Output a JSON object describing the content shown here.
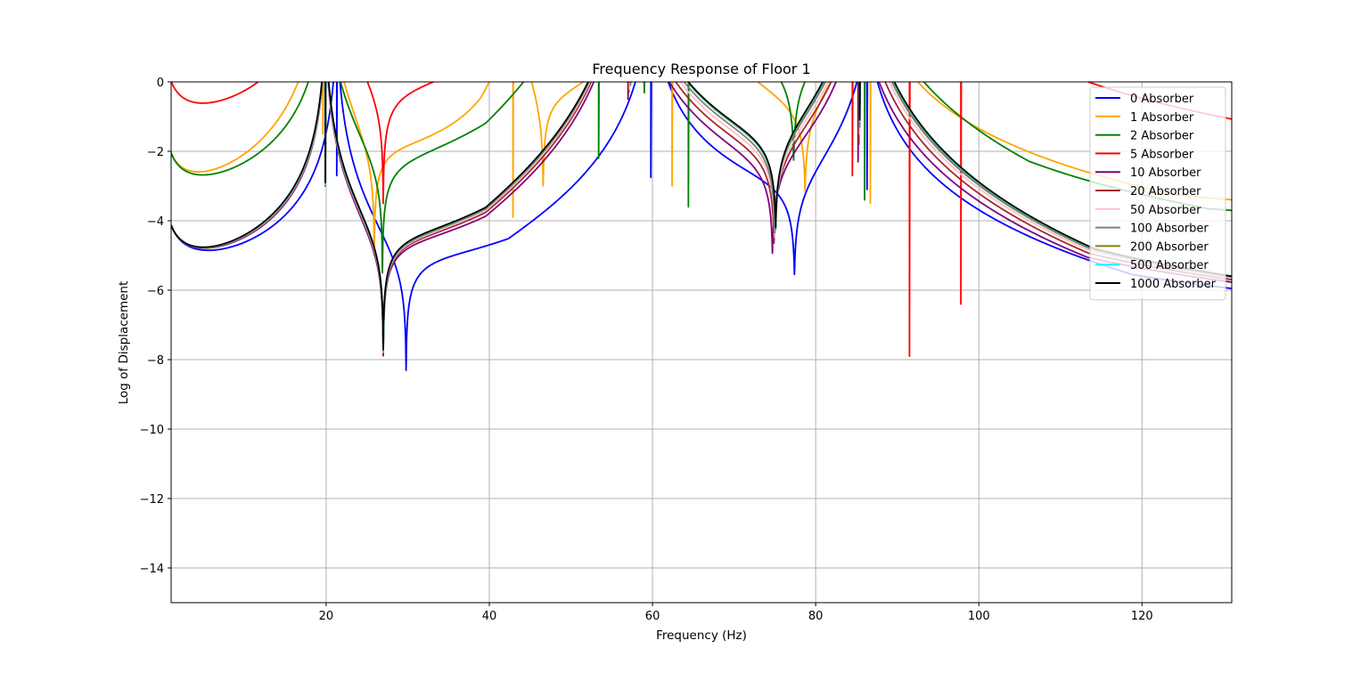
{
  "chart_data": {
    "type": "line",
    "title": "Frequency Response of Floor 1",
    "xlabel": "Frequency (Hz)",
    "ylabel": "Log of Displacement",
    "xlim": [
      1,
      131
    ],
    "ylim": [
      -15,
      0
    ],
    "x_ticks": [
      20,
      40,
      60,
      80,
      100,
      120
    ],
    "y_ticks": [
      0,
      -2,
      -4,
      -6,
      -8,
      -10,
      -12,
      -14
    ],
    "x_tick_labels": [
      "20",
      "40",
      "60",
      "80",
      "100",
      "120"
    ],
    "y_tick_labels": [
      "0",
      "−2",
      "−4",
      "−6",
      "−8",
      "−10",
      "−12",
      "−14"
    ],
    "grid": true,
    "legend_position": "top-right",
    "background": "#ffffff",
    "grid_color": "#b0b0b0",
    "series": [
      {
        "name": "0 Absorber",
        "color": "#0000ff",
        "base": -8.33,
        "zeros": [
          29.8,
          77.4
        ],
        "peaks": [
          [
            21.3,
            -2.7
          ],
          [
            59.8,
            -2.75
          ],
          [
            86.3,
            -3.1
          ]
        ]
      },
      {
        "name": "1 Absorber",
        "color": "#ffa500",
        "base": -8.33,
        "zeros": [
          25.9,
          46.6,
          78.7
        ],
        "peaks": [
          [
            19.6,
            -1.5
          ],
          [
            42.9,
            -3.9
          ],
          [
            62.4,
            -3.0
          ],
          [
            86.7,
            -3.5
          ]
        ]
      },
      {
        "name": "2 Absorber",
        "color": "#008000",
        "base": -8.33,
        "zeros": [
          26.9,
          59.0,
          77.3
        ],
        "peaks": [
          [
            19.9,
            -3.0
          ],
          [
            53.4,
            -2.2
          ],
          [
            64.4,
            -3.6
          ],
          [
            86.0,
            -3.4
          ]
        ]
      },
      {
        "name": "5 Absorber",
        "color": "#ff0000",
        "base": -8.33,
        "zeros": [
          27.0,
          74.1,
          91.4,
          97.6
        ],
        "peaks": [
          [
            19.9,
            -3.0
          ],
          [
            56.9,
            0.0
          ],
          [
            84.5,
            -2.7
          ],
          [
            91.5,
            -7.9
          ],
          [
            97.8,
            -6.4
          ]
        ]
      },
      {
        "name": "10 Absorber",
        "color": "#800080",
        "base": -8.33,
        "zeros": [
          27.0,
          74.7
        ],
        "peaks": [
          [
            19.9,
            -3.0
          ],
          [
            57.0,
            -0.5
          ],
          [
            85.2,
            -2.3
          ]
        ]
      },
      {
        "name": "20 Absorber",
        "color": "#a52a2a",
        "base": -8.33,
        "zeros": [
          27.0,
          74.9
        ],
        "peaks": [
          [
            19.9,
            -3.0
          ],
          [
            57.1,
            -0.3
          ],
          [
            85.3,
            -1.8
          ]
        ]
      },
      {
        "name": "50 Absorber",
        "color": "#ffc0cb",
        "base": -8.33,
        "zeros": [
          27.0,
          75.0
        ],
        "peaks": [
          [
            19.9,
            -3.0
          ],
          [
            57.2,
            -0.2
          ],
          [
            85.4,
            -1.5
          ]
        ]
      },
      {
        "name": "100 Absorber",
        "color": "#808080",
        "base": -8.33,
        "zeros": [
          27.0,
          75.0
        ],
        "peaks": [
          [
            19.9,
            -3.0
          ],
          [
            57.3,
            -0.1
          ],
          [
            85.4,
            -1.3
          ]
        ]
      },
      {
        "name": "200 Absorber",
        "color": "#808000",
        "base": -8.33,
        "zeros": [
          27.0,
          75.1
        ],
        "peaks": [
          [
            19.9,
            -2.95
          ],
          [
            57.4,
            0.0
          ],
          [
            85.4,
            -1.2
          ]
        ]
      },
      {
        "name": "500 Absorber",
        "color": "#00ffff",
        "base": -8.33,
        "zeros": [
          27.0,
          75.1
        ],
        "peaks": [
          [
            19.9,
            -2.95
          ],
          [
            57.4,
            0.0
          ],
          [
            85.4,
            -1.15
          ]
        ]
      },
      {
        "name": "1000 Absorber",
        "color": "#000000",
        "base": -8.33,
        "zeros": [
          27.0,
          75.1
        ],
        "peaks": [
          [
            19.9,
            -2.9
          ],
          [
            57.4,
            0.0
          ],
          [
            85.4,
            -1.1
          ]
        ]
      }
    ]
  }
}
